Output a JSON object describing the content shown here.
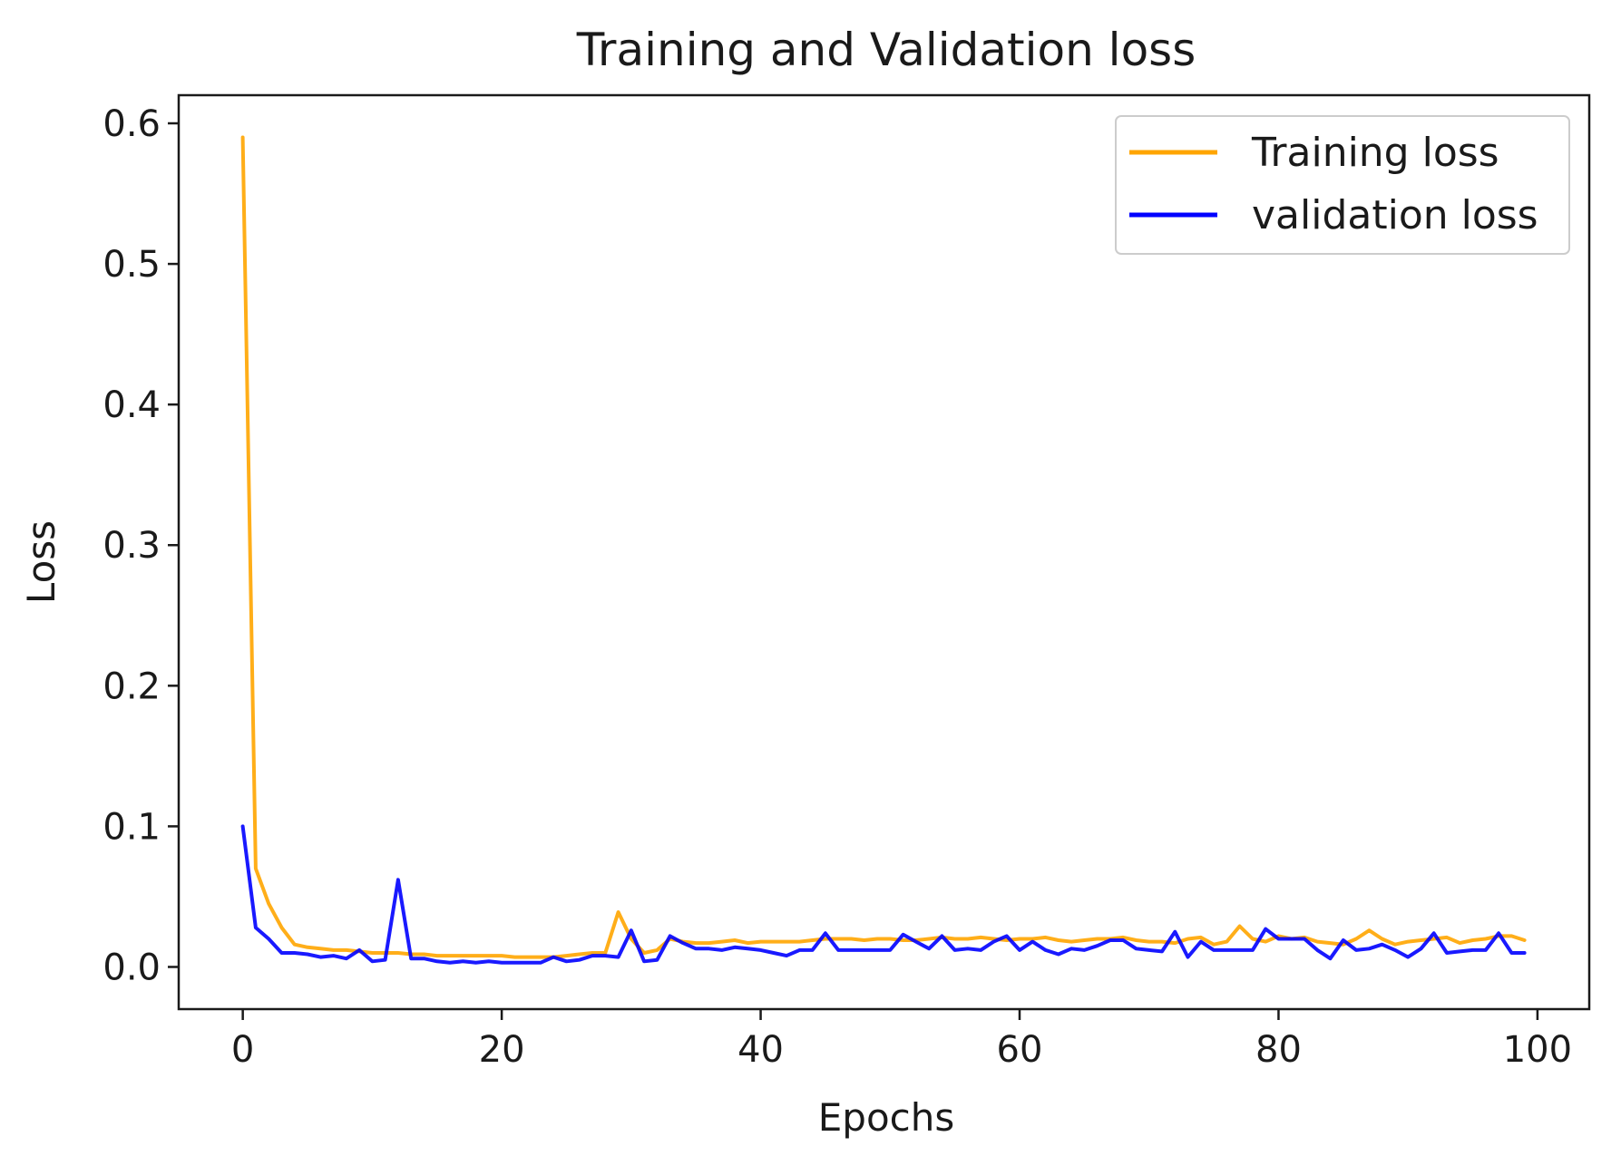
{
  "chart_data": {
    "type": "line",
    "title": "Training and Validation loss",
    "xlabel": "Epochs",
    "ylabel": "Loss",
    "xlim": [
      -4.95,
      104
    ],
    "ylim": [
      -0.03,
      0.62
    ],
    "grid": false,
    "legend_position": "top-right",
    "xticks": [
      0,
      20,
      40,
      60,
      80,
      100
    ],
    "xtick_labels": [
      "0",
      "20",
      "40",
      "60",
      "80",
      "100"
    ],
    "yticks": [
      0.0,
      0.1,
      0.2,
      0.3,
      0.4,
      0.5,
      0.6
    ],
    "ytick_labels": [
      "0.0",
      "0.1",
      "0.2",
      "0.3",
      "0.4",
      "0.5",
      "0.6"
    ],
    "series": [
      {
        "name": "Training loss",
        "color": "#ffa500",
        "x": [
          0,
          1,
          2,
          3,
          4,
          5,
          6,
          7,
          8,
          9,
          10,
          11,
          12,
          13,
          14,
          15,
          16,
          17,
          18,
          19,
          20,
          21,
          22,
          23,
          24,
          25,
          26,
          27,
          28,
          29,
          30,
          31,
          32,
          33,
          34,
          35,
          36,
          37,
          38,
          39,
          40,
          41,
          42,
          43,
          44,
          45,
          46,
          47,
          48,
          49,
          50,
          51,
          52,
          53,
          54,
          55,
          56,
          57,
          58,
          59,
          60,
          61,
          62,
          63,
          64,
          65,
          66,
          67,
          68,
          69,
          70,
          71,
          72,
          73,
          74,
          75,
          76,
          77,
          78,
          79,
          80,
          81,
          82,
          83,
          84,
          85,
          86,
          87,
          88,
          89,
          90,
          91,
          92,
          93,
          94,
          95,
          96,
          97,
          98,
          99
        ],
        "values": [
          0.59,
          0.07,
          0.045,
          0.028,
          0.016,
          0.014,
          0.013,
          0.012,
          0.012,
          0.011,
          0.01,
          0.01,
          0.01,
          0.009,
          0.009,
          0.008,
          0.008,
          0.008,
          0.008,
          0.008,
          0.008,
          0.007,
          0.007,
          0.007,
          0.007,
          0.008,
          0.009,
          0.01,
          0.01,
          0.039,
          0.02,
          0.01,
          0.012,
          0.02,
          0.018,
          0.017,
          0.017,
          0.018,
          0.019,
          0.017,
          0.018,
          0.018,
          0.018,
          0.018,
          0.019,
          0.02,
          0.02,
          0.02,
          0.019,
          0.02,
          0.02,
          0.019,
          0.019,
          0.02,
          0.021,
          0.02,
          0.02,
          0.021,
          0.02,
          0.019,
          0.02,
          0.02,
          0.021,
          0.019,
          0.018,
          0.019,
          0.02,
          0.02,
          0.021,
          0.019,
          0.018,
          0.018,
          0.017,
          0.02,
          0.021,
          0.016,
          0.018,
          0.029,
          0.02,
          0.018,
          0.022,
          0.02,
          0.021,
          0.018,
          0.017,
          0.016,
          0.02,
          0.026,
          0.02,
          0.016,
          0.018,
          0.019,
          0.02,
          0.021,
          0.017,
          0.019,
          0.02,
          0.022,
          0.022,
          0.019
        ]
      },
      {
        "name": "validation loss",
        "color": "#0000ff",
        "x": [
          0,
          1,
          2,
          3,
          4,
          5,
          6,
          7,
          8,
          9,
          10,
          11,
          12,
          13,
          14,
          15,
          16,
          17,
          18,
          19,
          20,
          21,
          22,
          23,
          24,
          25,
          26,
          27,
          28,
          29,
          30,
          31,
          32,
          33,
          34,
          35,
          36,
          37,
          38,
          39,
          40,
          41,
          42,
          43,
          44,
          45,
          46,
          47,
          48,
          49,
          50,
          51,
          52,
          53,
          54,
          55,
          56,
          57,
          58,
          59,
          60,
          61,
          62,
          63,
          64,
          65,
          66,
          67,
          68,
          69,
          70,
          71,
          72,
          73,
          74,
          75,
          76,
          77,
          78,
          79,
          80,
          81,
          82,
          83,
          84,
          85,
          86,
          87,
          88,
          89,
          90,
          91,
          92,
          93,
          94,
          95,
          96,
          97,
          98,
          99
        ],
        "values": [
          0.1,
          0.028,
          0.02,
          0.01,
          0.01,
          0.009,
          0.007,
          0.008,
          0.006,
          0.012,
          0.004,
          0.005,
          0.062,
          0.006,
          0.006,
          0.004,
          0.003,
          0.004,
          0.003,
          0.004,
          0.003,
          0.003,
          0.003,
          0.003,
          0.007,
          0.004,
          0.005,
          0.008,
          0.008,
          0.007,
          0.026,
          0.004,
          0.005,
          0.022,
          0.017,
          0.013,
          0.013,
          0.012,
          0.014,
          0.013,
          0.012,
          0.01,
          0.008,
          0.012,
          0.012,
          0.024,
          0.012,
          0.012,
          0.012,
          0.012,
          0.012,
          0.023,
          0.018,
          0.013,
          0.022,
          0.012,
          0.013,
          0.012,
          0.018,
          0.022,
          0.012,
          0.018,
          0.012,
          0.009,
          0.013,
          0.012,
          0.015,
          0.019,
          0.019,
          0.013,
          0.012,
          0.011,
          0.025,
          0.007,
          0.018,
          0.012,
          0.012,
          0.012,
          0.012,
          0.027,
          0.02,
          0.02,
          0.02,
          0.012,
          0.006,
          0.019,
          0.012,
          0.013,
          0.016,
          0.012,
          0.007,
          0.013,
          0.024,
          0.01,
          0.011,
          0.012,
          0.012,
          0.024,
          0.01,
          0.01
        ]
      }
    ]
  }
}
